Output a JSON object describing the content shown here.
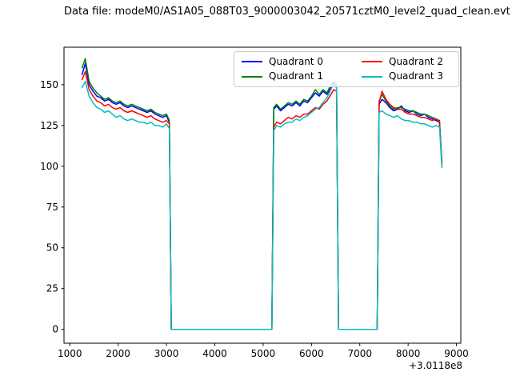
{
  "header": {
    "title": "Data file: modeM0/AS1A05_088T03_9000003042_20571cztM0_level2_quad_clean.evt"
  },
  "chart_data": {
    "type": "line",
    "title": "",
    "xlabel": "",
    "ylabel": "",
    "x_offset_label": "+3.0118e8",
    "xlim": [
      880,
      9090
    ],
    "ylim": [
      -8.5,
      173
    ],
    "xticks": [
      1000,
      2000,
      3000,
      4000,
      5000,
      6000,
      7000,
      8000,
      9000
    ],
    "yticks": [
      0,
      25,
      50,
      75,
      100,
      125,
      150
    ],
    "grid": false,
    "legend": {
      "location": "upper right",
      "ncol": 2,
      "order": [
        "Quadrant 0",
        "Quadrant 1",
        "Quadrant 2",
        "Quadrant 3"
      ]
    },
    "x": [
      1250,
      1320,
      1400,
      1480,
      1560,
      1640,
      1720,
      1800,
      1880,
      1960,
      2040,
      2120,
      2200,
      2280,
      2360,
      2440,
      2520,
      2600,
      2680,
      2760,
      2840,
      2920,
      3000,
      3060,
      3100,
      3140,
      5180,
      5220,
      5280,
      5360,
      5440,
      5520,
      5600,
      5680,
      5760,
      5840,
      5920,
      6000,
      6080,
      6160,
      6240,
      6320,
      6400,
      6460,
      6520,
      6560,
      7360,
      7400,
      7460,
      7540,
      7620,
      7700,
      7780,
      7860,
      7940,
      8020,
      8100,
      8180,
      8260,
      8340,
      8420,
      8500,
      8580,
      8650,
      8700
    ],
    "series": [
      {
        "name": "Quadrant 0",
        "color": "#0000ff",
        "y": [
          156,
          163,
          150,
          146,
          143,
          142,
          140,
          141,
          139,
          138,
          139,
          137,
          136,
          137,
          136,
          135,
          134,
          133,
          134,
          132,
          131,
          130,
          131,
          127,
          0,
          0,
          0,
          135,
          137,
          134,
          136,
          138,
          137,
          139,
          137,
          140,
          139,
          142,
          145,
          143,
          146,
          144,
          148,
          151,
          149,
          0,
          0,
          138,
          141,
          139,
          136,
          134,
          135,
          137,
          134,
          133,
          134,
          132,
          131,
          132,
          130,
          129,
          128,
          127,
          102
        ]
      },
      {
        "name": "Quadrant 1",
        "color": "#008000",
        "y": [
          160,
          166,
          152,
          148,
          145,
          143,
          141,
          142,
          140,
          139,
          140,
          138,
          137,
          138,
          137,
          136,
          135,
          134,
          135,
          133,
          132,
          131,
          132,
          128,
          0,
          0,
          0,
          136,
          138,
          135,
          137,
          139,
          138,
          140,
          138,
          141,
          140,
          143,
          147,
          144,
          147,
          145,
          150,
          152,
          150,
          0,
          0,
          140,
          144,
          140,
          137,
          135,
          136,
          136,
          135,
          134,
          134,
          133,
          132,
          132,
          131,
          130,
          129,
          128,
          101
        ]
      },
      {
        "name": "Quadrant 2",
        "color": "#ff0000",
        "y": [
          153,
          158,
          147,
          143,
          140,
          139,
          137,
          138,
          136,
          135,
          136,
          134,
          133,
          134,
          133,
          132,
          131,
          130,
          131,
          129,
          128,
          127,
          128,
          126,
          0,
          0,
          0,
          124,
          127,
          126,
          128,
          130,
          129,
          131,
          130,
          132,
          132,
          134,
          136,
          135,
          138,
          140,
          144,
          147,
          146,
          0,
          0,
          139,
          146,
          141,
          138,
          136,
          135,
          135,
          133,
          132,
          132,
          131,
          130,
          130,
          129,
          128,
          129,
          127,
          100
        ]
      },
      {
        "name": "Quadrant 3",
        "color": "#00bfbf",
        "y": [
          148,
          152,
          143,
          139,
          136,
          135,
          133,
          134,
          132,
          130,
          131,
          129,
          128,
          129,
          128,
          127,
          127,
          126,
          127,
          125,
          125,
          124,
          126,
          123,
          0,
          0,
          0,
          122,
          125,
          124,
          126,
          127,
          127,
          129,
          128,
          130,
          131,
          133,
          135,
          136,
          139,
          142,
          147,
          150,
          148,
          0,
          0,
          133,
          134,
          132,
          131,
          130,
          131,
          129,
          128,
          128,
          127,
          127,
          126,
          126,
          125,
          124,
          125,
          124,
          99
        ]
      }
    ]
  }
}
